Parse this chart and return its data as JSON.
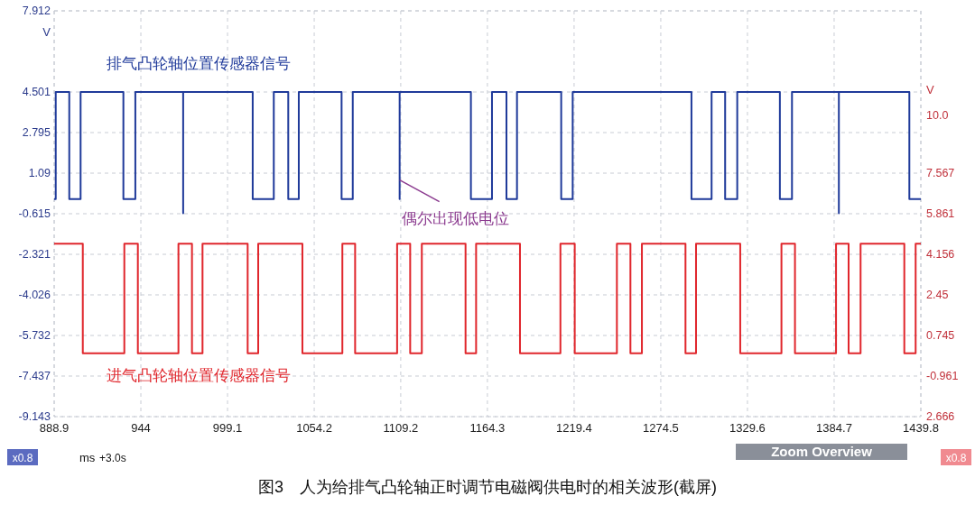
{
  "chart_data": {
    "type": "line",
    "title": "图3　人为给排气凸轮轴正时调节电磁阀供电时的相关波形(截屏)",
    "xlabel": "ms",
    "ylabel": "V",
    "y2label": "V",
    "xlim": [
      888.9,
      1439.8
    ],
    "xticks": [
      888.9,
      944.0,
      999.1,
      1054.2,
      1109.2,
      1164.3,
      1219.4,
      1274.5,
      1329.6,
      1384.7,
      1439.8
    ],
    "ylim": [
      -9.143,
      7.912
    ],
    "yticks": [
      -9.143,
      -7.437,
      -5.732,
      -4.026,
      -2.321,
      -0.615,
      1.09,
      2.795,
      4.501,
      7.912
    ],
    "y2lim": [
      -2.666,
      14.389
    ],
    "y2ticks": [
      {
        "value": -2.666,
        "label": "2.666"
      },
      -0.961,
      0.745,
      2.45,
      4.156,
      5.861,
      7.567,
      {
        "value": 10.0,
        "label": "10.0"
      }
    ],
    "grid": true,
    "line_style": "solid",
    "series": [
      {
        "name": "排气凸轮轴位置传感器信号",
        "color": "#1f3a9a",
        "x": [
          888.9,
          889.9,
          889.9,
          898.5,
          898.5,
          905.7,
          905.7,
          932.9,
          932.9,
          940.5,
          940.5,
          970.9,
          970.9,
          970.9,
          1015.1,
          1015.1,
          1028.5,
          1028.5,
          1037.7,
          1037.7,
          1044.4,
          1044.4,
          1071.6,
          1071.6,
          1078.7,
          1078.7,
          1108.5,
          1108.5,
          1108.5,
          1153.8,
          1153.8,
          1167.2,
          1167.2,
          1176.4,
          1176.4,
          1183.1,
          1183.1,
          1211.2,
          1211.2,
          1218.5,
          1218.5,
          1294.0,
          1294.0,
          1306.8,
          1306.8,
          1315.4,
          1315.4,
          1323.1,
          1323.1,
          1350.2,
          1350.2,
          1357.9,
          1357.9,
          1387.7,
          1387.7,
          1387.7,
          1432.5,
          1432.5,
          1439.8
        ],
        "values": [
          0,
          0,
          4.5,
          4.5,
          0,
          0,
          4.5,
          4.5,
          0,
          0,
          4.5,
          4.5,
          -0.6,
          4.5,
          4.5,
          0,
          0,
          4.5,
          4.5,
          0,
          0,
          4.5,
          4.5,
          0,
          0,
          4.5,
          4.5,
          0,
          4.5,
          4.5,
          0,
          0,
          4.5,
          4.5,
          0,
          0,
          4.5,
          4.5,
          0,
          0,
          4.5,
          4.5,
          0,
          0,
          4.5,
          4.5,
          0,
          0,
          4.5,
          4.5,
          0,
          0,
          4.5,
          4.5,
          -0.6,
          4.5,
          4.5,
          0,
          0
        ]
      },
      {
        "name": "进气凸轮轴位置传感器信号",
        "color": "#e0262c",
        "axis": "y2",
        "x": [
          888.9,
          907.1,
          907.1,
          933.5,
          933.5,
          942.1,
          942.1,
          967.9,
          967.9,
          976.5,
          976.5,
          983.2,
          983.2,
          1011.9,
          1011.9,
          1018.6,
          1018.6,
          1046.7,
          1046.7,
          1072.1,
          1072.1,
          1080.2,
          1080.2,
          1106.9,
          1106.9,
          1115.2,
          1115.2,
          1122.6,
          1122.6,
          1150.4,
          1150.4,
          1157.1,
          1157.1,
          1185.0,
          1185.0,
          1210.7,
          1210.7,
          1219.8,
          1219.8,
          1246.6,
          1246.6,
          1255.2,
          1255.2,
          1262.5,
          1262.5,
          1290.2,
          1290.2,
          1296.9,
          1296.9,
          1325.0,
          1325.0,
          1351.2,
          1351.2,
          1359.8,
          1359.8,
          1385.9,
          1385.9,
          1393.9,
          1393.9,
          1401.5,
          1401.5,
          1429.3,
          1429.3,
          1436.5,
          1436.5,
          1439.8
        ],
        "values": [
          4.6,
          4.6,
          0,
          0,
          4.6,
          4.6,
          0,
          0,
          4.6,
          4.6,
          0,
          0,
          4.6,
          4.6,
          0,
          0,
          4.6,
          4.6,
          0,
          0,
          4.6,
          4.6,
          0,
          0,
          4.6,
          4.6,
          0,
          0,
          4.6,
          4.6,
          0,
          0,
          4.6,
          4.6,
          0,
          0,
          4.6,
          4.6,
          0,
          0,
          4.6,
          4.6,
          0,
          0,
          4.6,
          4.6,
          0,
          0,
          4.6,
          4.6,
          0,
          0,
          4.6,
          4.6,
          0,
          0,
          4.6,
          4.6,
          0,
          0,
          4.6,
          4.6,
          0,
          0,
          4.6,
          4.6
        ]
      }
    ],
    "annotations": [
      {
        "text": "偶尔出现低电位",
        "x": 1108.5,
        "y": 0.8
      },
      "x0.8",
      "+3.0s",
      "Zoom Overview",
      "x0.8"
    ]
  }
}
